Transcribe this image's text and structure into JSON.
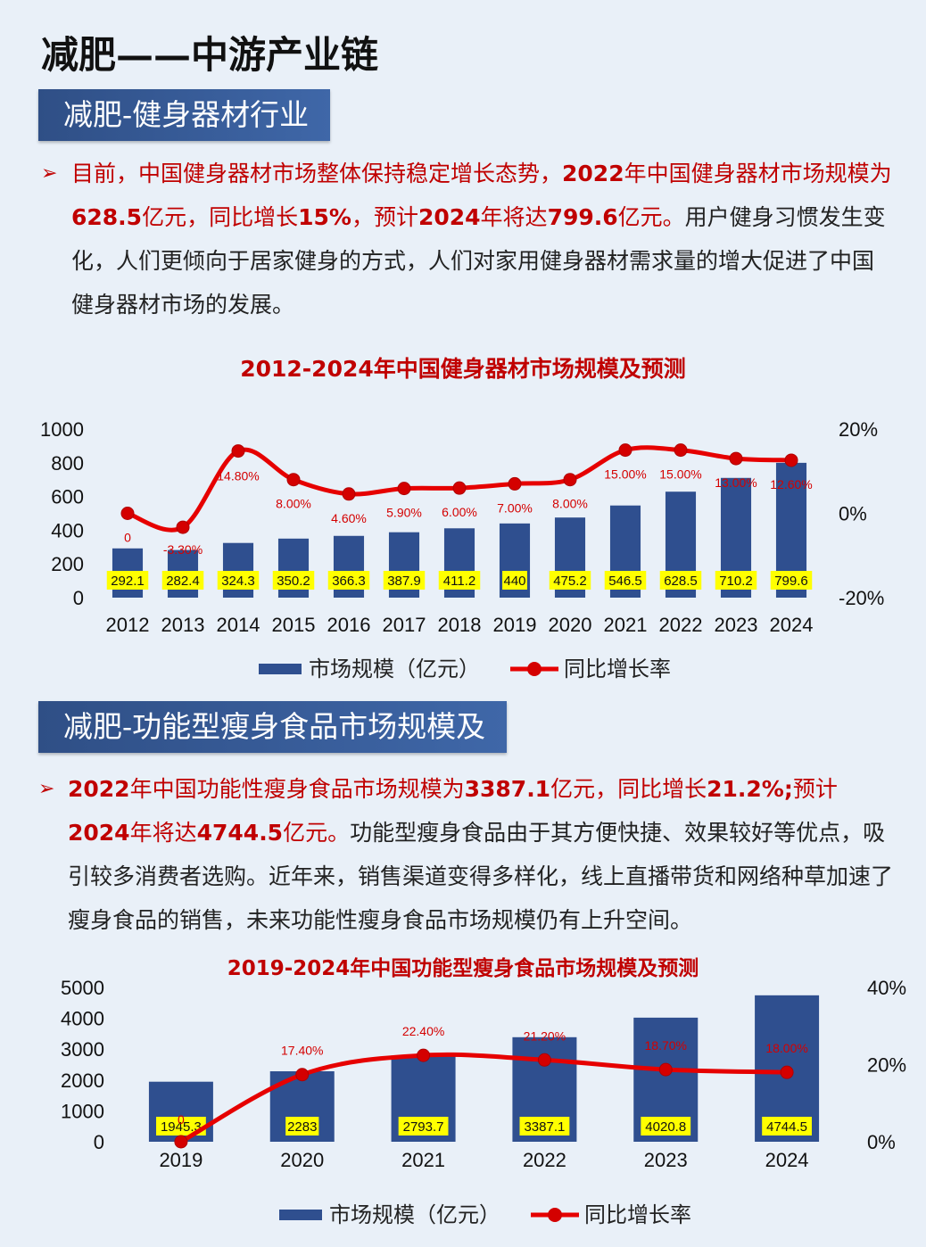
{
  "page": {
    "title": "减肥——中游产业链",
    "legend_bar": "市场规模（亿元）",
    "legend_line": "同比增长率"
  },
  "section1": {
    "heading": "减肥-健身器材行业",
    "para": [
      {
        "t": "目前，中国健身器材市场整体保持稳定增长态势，",
        "s": "hlc"
      },
      {
        "t": "2022",
        "s": "hl"
      },
      {
        "t": "年中国健身器材市场规模为",
        "s": "hlc"
      },
      {
        "t": "628.5",
        "s": "hl"
      },
      {
        "t": "亿元，同比增长",
        "s": "hlc"
      },
      {
        "t": "15%",
        "s": "hl"
      },
      {
        "t": "，预计",
        "s": "hlc"
      },
      {
        "t": "2024",
        "s": "hl"
      },
      {
        "t": "年将达",
        "s": "hlc"
      },
      {
        "t": "799.6",
        "s": "hl"
      },
      {
        "t": "亿元。",
        "s": "hlc"
      },
      {
        "t": "用户健身习惯发生变化，人们更倾向于居家健身的方式，人们对家用健身器材需求量的增大促进了中国健身器材市场的发展。",
        "s": ""
      }
    ]
  },
  "section2": {
    "heading": "减肥-功能型瘦身食品市场规模及",
    "para": [
      {
        "t": "2022",
        "s": "hl"
      },
      {
        "t": "年中国功能性瘦身食品市场规模为",
        "s": "hlc"
      },
      {
        "t": "3387.1",
        "s": "hl"
      },
      {
        "t": "亿元，同比增长",
        "s": "hlc"
      },
      {
        "t": "21.2%;",
        "s": "hl"
      },
      {
        "t": "预计",
        "s": "hlc"
      },
      {
        "t": "2024",
        "s": "hl"
      },
      {
        "t": "年将达",
        "s": "hlc"
      },
      {
        "t": "4744.5",
        "s": "hl"
      },
      {
        "t": "亿元。",
        "s": "hlc"
      },
      {
        "t": "功能型瘦身食品由于其方便快捷、效果较好等优点，吸引较多消费者选购。近年来，销售渠道变得多样化，线上直播带货和网络种草加速了瘦身食品的销售，未来功能性瘦身食品市场规模仍有上升空间。",
        "s": ""
      }
    ]
  },
  "colors": {
    "bar": "#2f4f8f",
    "line": "#e60000",
    "label_bg": "#ffff00",
    "accent_red": "#c00000"
  },
  "chart_data": [
    {
      "type": "bar",
      "title": "2012-2024年中国健身器材市场规模及预测",
      "categories": [
        "2012",
        "2013",
        "2014",
        "2015",
        "2016",
        "2017",
        "2018",
        "2019",
        "2020",
        "2021",
        "2022",
        "2023",
        "2024"
      ],
      "series": [
        {
          "name": "市场规模（亿元）",
          "type": "bar",
          "axis": "left",
          "values": [
            292.1,
            282.4,
            324.3,
            350.2,
            366.3,
            387.9,
            411.2,
            440,
            475.2,
            546.5,
            628.5,
            710.2,
            799.6
          ],
          "labels": [
            "292.1",
            "282.4",
            "324.3",
            "350.2",
            "366.3",
            "387.9",
            "411.2",
            "440",
            "475.2",
            "546.5",
            "628.5",
            "710.2",
            "799.6"
          ]
        },
        {
          "name": "同比增长率",
          "type": "line",
          "axis": "right",
          "values": [
            0,
            -3.3,
            14.8,
            8.0,
            4.6,
            5.9,
            6.0,
            7.0,
            8.0,
            15.0,
            15.0,
            13.0,
            12.6
          ],
          "labels": [
            "0",
            "-3.30%",
            "14.80%",
            "8.00%",
            "4.60%",
            "5.90%",
            "6.00%",
            "7.00%",
            "8.00%",
            "15.00%",
            "15.00%",
            "13.00%",
            "12.60%"
          ]
        }
      ],
      "ylim": [
        0,
        1000
      ],
      "yticks": [
        "0",
        "200",
        "400",
        "600",
        "800",
        "1000"
      ],
      "y2lim": [
        -20,
        20
      ],
      "y2ticks": [
        "-20%",
        "0%",
        "20%"
      ],
      "legend": "bottom"
    },
    {
      "type": "bar",
      "title": "2019-2024年中国功能型瘦身食品市场规模及预测",
      "categories": [
        "2019",
        "2020",
        "2021",
        "2022",
        "2023",
        "2024"
      ],
      "series": [
        {
          "name": "市场规模（亿元）",
          "type": "bar",
          "axis": "left",
          "values": [
            1945.3,
            2283,
            2793.7,
            3387.1,
            4020.8,
            4744.5
          ],
          "labels": [
            "1945.3",
            "2283",
            "2793.7",
            "3387.1",
            "4020.8",
            "4744.5"
          ]
        },
        {
          "name": "同比增长率",
          "type": "line",
          "axis": "right",
          "values": [
            0,
            17.4,
            22.4,
            21.2,
            18.7,
            18.0
          ],
          "labels": [
            "0",
            "17.40%",
            "22.40%",
            "21.20%",
            "18.70%",
            "18.00%"
          ]
        }
      ],
      "ylim": [
        0,
        5000
      ],
      "yticks": [
        "0",
        "1000",
        "2000",
        "3000",
        "4000",
        "5000"
      ],
      "y2lim": [
        0,
        40
      ],
      "y2ticks": [
        "0%",
        "20%",
        "40%"
      ],
      "legend": "bottom"
    }
  ]
}
